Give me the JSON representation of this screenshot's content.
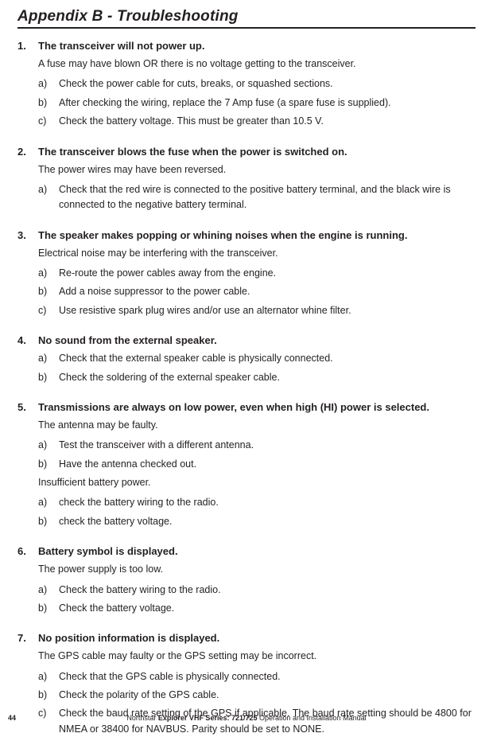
{
  "page": {
    "title": "Appendix B - Troubleshooting",
    "number": "44",
    "footer_prefix": "Northstar ",
    "footer_bold": "Explorer VHF Series: 721/725",
    "footer_suffix": " Operation and Installation Manual"
  },
  "sections": [
    {
      "num": "1.",
      "title": "The transceiver will not power up.",
      "blocks": [
        {
          "type": "intro",
          "text": "A fuse may have blown OR there is no voltage getting to the transceiver."
        },
        {
          "type": "step",
          "letter": "a)",
          "text": "Check the power cable for cuts, breaks, or squashed sections."
        },
        {
          "type": "step",
          "letter": "b)",
          "text": "After checking the wiring, replace the 7 Amp fuse (a spare fuse is supplied)."
        },
        {
          "type": "step",
          "letter": "c)",
          "text": "Check the battery voltage. This must be greater than 10.5 V."
        }
      ]
    },
    {
      "num": "2.",
      "title": "The transceiver blows the fuse when the power is switched on.",
      "blocks": [
        {
          "type": "intro",
          "text": "The power wires may have been reversed."
        },
        {
          "type": "step",
          "letter": "a)",
          "text": "Check that the red wire is connected to the positive battery terminal, and the black wire is connected to the negative battery terminal."
        }
      ]
    },
    {
      "num": "3.",
      "title": "The speaker makes popping or whining noises when the engine is running.",
      "blocks": [
        {
          "type": "intro",
          "text": "Electrical noise may be interfering with the transceiver."
        },
        {
          "type": "step",
          "letter": "a)",
          "text": "Re-route the power cables away from the engine."
        },
        {
          "type": "step",
          "letter": "b)",
          "text": "Add a noise suppressor to the power cable."
        },
        {
          "type": "step",
          "letter": "c)",
          "text": "Use resistive spark plug wires and/or use an alternator whine filter."
        }
      ]
    },
    {
      "num": "4.",
      "title": "No sound from the external speaker.",
      "blocks": [
        {
          "type": "step",
          "letter": "a)",
          "text": "Check that the external speaker cable is physically connected."
        },
        {
          "type": "step",
          "letter": "b)",
          "text": "Check the soldering of the external speaker cable."
        }
      ]
    },
    {
      "num": "5.",
      "title": "Transmissions are always on low power, even when high (HI) power is  selected.",
      "blocks": [
        {
          "type": "intro",
          "text": "The antenna may be faulty."
        },
        {
          "type": "step",
          "letter": "a)",
          "text": "Test the transceiver with a different antenna."
        },
        {
          "type": "step",
          "letter": "b)",
          "text": "Have the antenna checked out."
        },
        {
          "type": "intro",
          "text": "Insufficient battery power."
        },
        {
          "type": "step",
          "letter": "a)",
          "text": "check the battery wiring to the radio."
        },
        {
          "type": "step",
          "letter": "b)",
          "text": "check the battery voltage."
        }
      ]
    },
    {
      "num": "6.",
      "title": "Battery symbol is displayed.",
      "blocks": [
        {
          "type": "intro",
          "text": "The power supply is too low."
        },
        {
          "type": "step",
          "letter": "a)",
          "text": "Check the battery wiring to the radio."
        },
        {
          "type": "step",
          "letter": "b)",
          "text": "Check the battery voltage."
        }
      ]
    },
    {
      "num": "7.",
      "title": "No position information is displayed.",
      "blocks": [
        {
          "type": "intro",
          "text": "The GPS cable may faulty or the GPS setting may be incorrect."
        },
        {
          "type": "step",
          "letter": "a)",
          "text": "Check that the GPS cable is physically connected."
        },
        {
          "type": "step",
          "letter": "b)",
          "text": "Check the polarity of the GPS cable."
        },
        {
          "type": "step",
          "letter": "c)",
          "text": "Check the baud rate setting of the GPS if applicable. The baud rate setting should be 4800 for NMEA or 38400 for NAVBUS.  Parity should be set to NONE."
        }
      ]
    }
  ]
}
